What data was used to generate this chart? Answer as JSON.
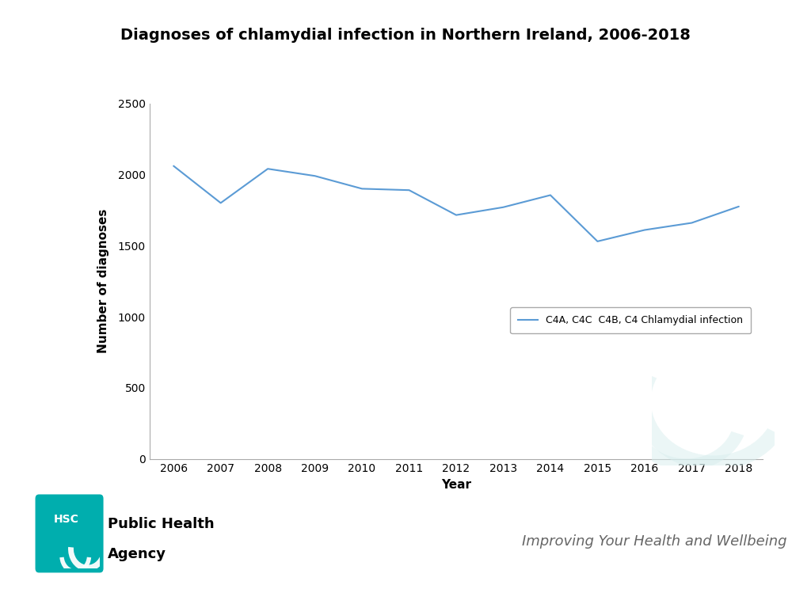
{
  "title": "Diagnoses of chlamydial infection in Northern Ireland, 2006-2018",
  "years": [
    2006,
    2007,
    2008,
    2009,
    2010,
    2011,
    2012,
    2013,
    2014,
    2015,
    2016,
    2017,
    2018
  ],
  "values": [
    2060,
    1800,
    2040,
    1990,
    1900,
    1890,
    1715,
    1770,
    1855,
    1530,
    1610,
    1660,
    1775
  ],
  "line_color": "#5B9BD5",
  "xlabel": "Year",
  "ylabel": "Number of diagnoses",
  "ylim": [
    0,
    2500
  ],
  "yticks": [
    0,
    500,
    1000,
    1500,
    2000,
    2500
  ],
  "legend_label": "C4A, C4C  C4B, C4 Chlamydial infection",
  "background_color": "#ffffff",
  "plot_bg_color": "#ffffff",
  "title_fontsize": 14,
  "axis_fontsize": 11,
  "tick_fontsize": 10,
  "legend_fontsize": 9,
  "footer_left_text1": "Public Health",
  "footer_left_text2": "Agency",
  "footer_right_text": "Improving Your Health and Wellbeing",
  "hsc_box_color": "#00AEAE",
  "hsc_text": "HSC",
  "spine_color": "#aaaaaa",
  "watermark_color": "#d8eeee"
}
